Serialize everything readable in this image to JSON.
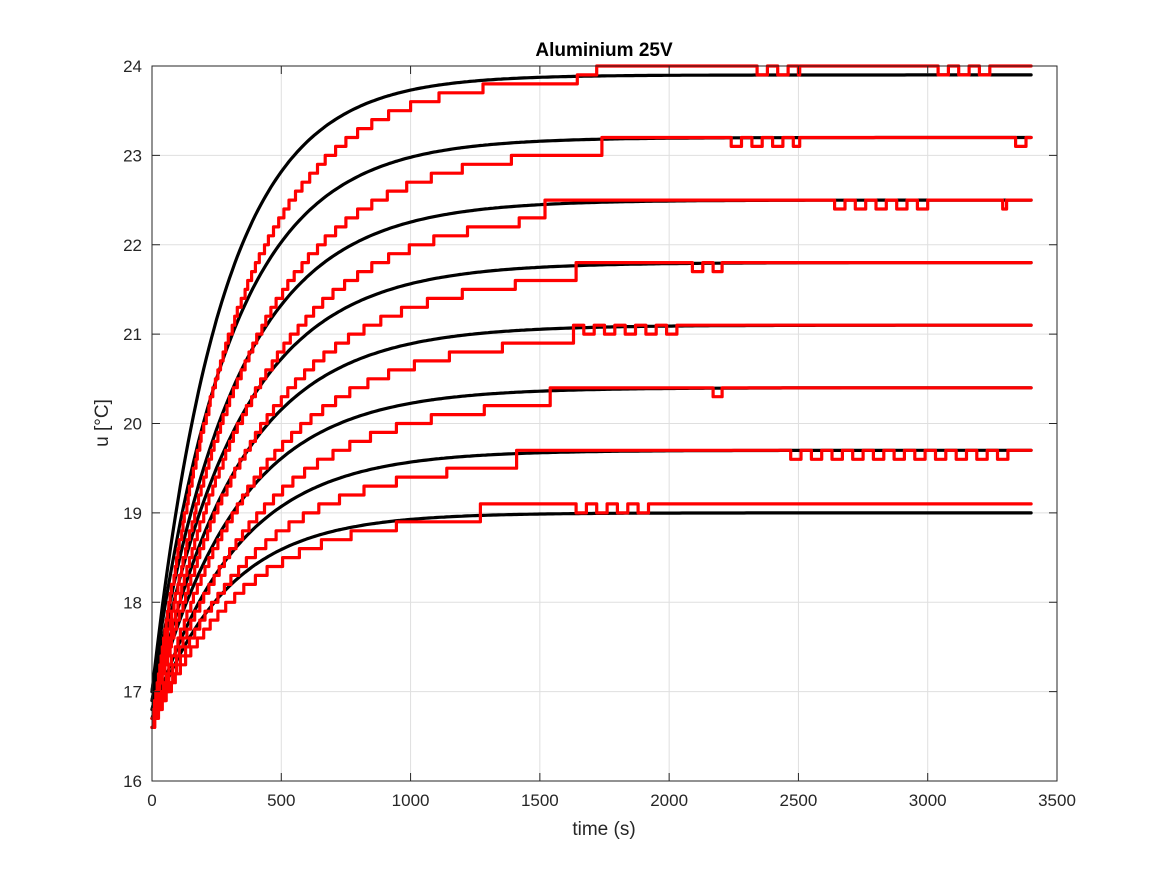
{
  "chart_data": {
    "type": "line",
    "title": "Aluminium 25V",
    "xlabel": "time (s)",
    "ylabel": "u [°C]",
    "xlim": [
      0,
      3500
    ],
    "ylim": [
      16,
      24
    ],
    "xticks": [
      0,
      500,
      1000,
      1500,
      2000,
      2500,
      3000,
      3500
    ],
    "yticks": [
      16,
      17,
      18,
      19,
      20,
      21,
      22,
      23,
      24
    ],
    "grid": true,
    "legend": "none",
    "colors": {
      "model": "#000000",
      "measured": "#ff0000"
    },
    "model_series": [
      {
        "u0": 17.0,
        "u_final": 23.9,
        "tau": 270,
        "t_end": 3400
      },
      {
        "u0": 17.0,
        "u_final": 23.2,
        "tau": 300,
        "t_end": 3400
      },
      {
        "u0": 16.9,
        "u_final": 22.5,
        "tau": 320,
        "t_end": 3400
      },
      {
        "u0": 16.9,
        "u_final": 21.8,
        "tau": 330,
        "t_end": 3400
      },
      {
        "u0": 16.8,
        "u_final": 21.1,
        "tau": 330,
        "t_end": 3400
      },
      {
        "u0": 16.8,
        "u_final": 20.4,
        "tau": 330,
        "t_end": 3400
      },
      {
        "u0": 16.7,
        "u_final": 19.7,
        "tau": 320,
        "t_end": 3400
      },
      {
        "u0": 16.7,
        "u_final": 19.0,
        "tau": 290,
        "t_end": 3400
      }
    ],
    "measured_series": [
      {
        "u0": 16.7,
        "u_final": 23.9,
        "tau": 330,
        "late_level": 24.0,
        "switch_t": 1720,
        "flicker": [
          2300,
          2500,
          3000,
          3250
        ],
        "t_end": 3400
      },
      {
        "u0": 16.7,
        "u_final": 23.1,
        "tau": 370,
        "late_level": 23.2,
        "switch_t": 1740,
        "flicker": [
          2200,
          2500,
          3300,
          3400
        ],
        "t_end": 3400
      },
      {
        "u0": 16.7,
        "u_final": 22.4,
        "tau": 390,
        "late_level": 22.5,
        "switch_t": 1520,
        "flicker": [
          2600,
          3000,
          3250,
          3300
        ],
        "t_end": 3400
      },
      {
        "u0": 16.7,
        "u_final": 21.7,
        "tau": 400,
        "late_level": 21.8,
        "switch_t": 1640,
        "flicker": [
          2050,
          2200
        ],
        "t_end": 3400
      },
      {
        "u0": 16.6,
        "u_final": 21.0,
        "tau": 400,
        "late_level": 21.1,
        "switch_t": 1630,
        "flicker": [
          1630,
          2030
        ],
        "t_end": 3400
      },
      {
        "u0": 16.6,
        "u_final": 20.3,
        "tau": 400,
        "late_level": 20.4,
        "switch_t": 1540,
        "flicker": [
          2130,
          2200
        ],
        "t_end": 3400
      },
      {
        "u0": 16.6,
        "u_final": 19.6,
        "tau": 380,
        "late_level": 19.7,
        "switch_t": 1410,
        "flicker": [
          2430,
          3320
        ],
        "t_end": 3400
      },
      {
        "u0": 16.6,
        "u_final": 19.0,
        "tau": 340,
        "late_level": 19.1,
        "switch_t": 1270,
        "flicker": [
          1600,
          1950
        ],
        "t_end": 3400
      }
    ]
  }
}
